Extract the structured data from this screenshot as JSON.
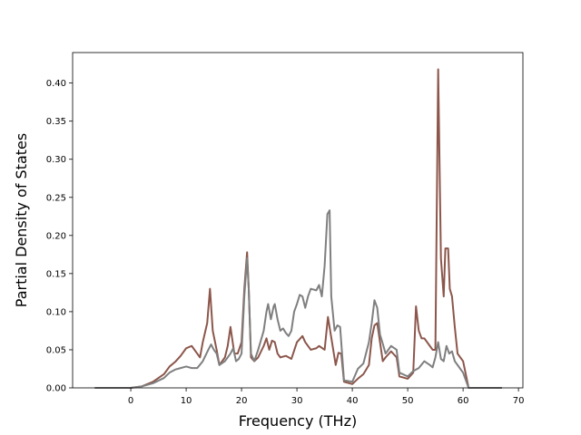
{
  "chart_data": {
    "type": "line",
    "title": "",
    "xlabel": "Frequency (THz)",
    "ylabel": "Partial Density of States",
    "xlim": [
      -10.5,
      70.8
    ],
    "ylim": [
      0.0,
      0.44
    ],
    "x_ticks": [
      "0",
      "10",
      "20",
      "30",
      "40",
      "50",
      "60",
      "70"
    ],
    "y_ticks": [
      "0.00",
      "0.05",
      "0.10",
      "0.15",
      "0.20",
      "0.25",
      "0.30",
      "0.35",
      "0.40"
    ],
    "grid": false,
    "legend": "none",
    "series": [
      {
        "color": "#8c564b",
        "points": [
          [
            -6.5,
            0.0
          ],
          [
            0,
            0.0
          ],
          [
            2,
            0.002
          ],
          [
            4,
            0.008
          ],
          [
            6,
            0.018
          ],
          [
            7,
            0.028
          ],
          [
            8,
            0.034
          ],
          [
            9,
            0.042
          ],
          [
            10,
            0.052
          ],
          [
            11,
            0.055
          ],
          [
            12,
            0.045
          ],
          [
            12.5,
            0.04
          ],
          [
            13,
            0.06
          ],
          [
            13.8,
            0.085
          ],
          [
            14.3,
            0.13
          ],
          [
            14.8,
            0.075
          ],
          [
            15.5,
            0.05
          ],
          [
            16,
            0.03
          ],
          [
            17,
            0.04
          ],
          [
            17.5,
            0.055
          ],
          [
            18,
            0.08
          ],
          [
            18.7,
            0.045
          ],
          [
            19.3,
            0.045
          ],
          [
            20,
            0.06
          ],
          [
            20.5,
            0.13
          ],
          [
            21,
            0.178
          ],
          [
            21.3,
            0.13
          ],
          [
            21.7,
            0.04
          ],
          [
            22.3,
            0.035
          ],
          [
            23,
            0.04
          ],
          [
            24,
            0.055
          ],
          [
            24.5,
            0.065
          ],
          [
            25,
            0.05
          ],
          [
            25.5,
            0.062
          ],
          [
            26,
            0.06
          ],
          [
            26.5,
            0.045
          ],
          [
            27,
            0.04
          ],
          [
            28,
            0.042
          ],
          [
            29,
            0.038
          ],
          [
            30,
            0.06
          ],
          [
            31,
            0.068
          ],
          [
            31.5,
            0.06
          ],
          [
            32.5,
            0.05
          ],
          [
            33.5,
            0.052
          ],
          [
            34,
            0.055
          ],
          [
            35,
            0.05
          ],
          [
            35.6,
            0.093
          ],
          [
            36,
            0.075
          ],
          [
            37,
            0.03
          ],
          [
            37.5,
            0.046
          ],
          [
            38,
            0.045
          ],
          [
            38.5,
            0.008
          ],
          [
            40,
            0.005
          ],
          [
            41,
            0.012
          ],
          [
            42,
            0.018
          ],
          [
            43,
            0.03
          ],
          [
            43.5,
            0.065
          ],
          [
            44,
            0.082
          ],
          [
            44.5,
            0.085
          ],
          [
            45,
            0.06
          ],
          [
            45.5,
            0.035
          ],
          [
            46,
            0.04
          ],
          [
            47,
            0.048
          ],
          [
            48,
            0.04
          ],
          [
            48.5,
            0.015
          ],
          [
            50,
            0.012
          ],
          [
            51,
            0.02
          ],
          [
            51.5,
            0.107
          ],
          [
            52,
            0.075
          ],
          [
            52.5,
            0.065
          ],
          [
            53,
            0.065
          ],
          [
            54,
            0.055
          ],
          [
            54.5,
            0.05
          ],
          [
            55,
            0.05
          ],
          [
            55.5,
            0.418
          ],
          [
            56,
            0.17
          ],
          [
            56.5,
            0.12
          ],
          [
            56.8,
            0.183
          ],
          [
            57.3,
            0.183
          ],
          [
            57.6,
            0.13
          ],
          [
            58,
            0.12
          ],
          [
            58.5,
            0.08
          ],
          [
            59,
            0.045
          ],
          [
            60,
            0.035
          ],
          [
            61,
            0.0
          ],
          [
            62,
            0.0
          ],
          [
            67,
            0.0
          ]
        ]
      },
      {
        "color": "#7f7f7f",
        "points": [
          [
            -6.5,
            0.0
          ],
          [
            0,
            0.0
          ],
          [
            2,
            0.002
          ],
          [
            4,
            0.006
          ],
          [
            6,
            0.013
          ],
          [
            7,
            0.02
          ],
          [
            8,
            0.024
          ],
          [
            9,
            0.026
          ],
          [
            10,
            0.028
          ],
          [
            11,
            0.026
          ],
          [
            12,
            0.026
          ],
          [
            13,
            0.035
          ],
          [
            14,
            0.05
          ],
          [
            14.5,
            0.057
          ],
          [
            15,
            0.05
          ],
          [
            15.5,
            0.045
          ],
          [
            16,
            0.03
          ],
          [
            17,
            0.035
          ],
          [
            18,
            0.045
          ],
          [
            18.5,
            0.052
          ],
          [
            19,
            0.035
          ],
          [
            19.5,
            0.038
          ],
          [
            20,
            0.045
          ],
          [
            20.5,
            0.12
          ],
          [
            21,
            0.17
          ],
          [
            21.3,
            0.13
          ],
          [
            21.7,
            0.045
          ],
          [
            22.3,
            0.035
          ],
          [
            23,
            0.05
          ],
          [
            24,
            0.075
          ],
          [
            24.5,
            0.1
          ],
          [
            24.8,
            0.11
          ],
          [
            25.3,
            0.09
          ],
          [
            25.8,
            0.107
          ],
          [
            26,
            0.11
          ],
          [
            26.5,
            0.09
          ],
          [
            27,
            0.075
          ],
          [
            27.5,
            0.078
          ],
          [
            28,
            0.072
          ],
          [
            28.5,
            0.068
          ],
          [
            29,
            0.075
          ],
          [
            29.5,
            0.1
          ],
          [
            30,
            0.11
          ],
          [
            30.5,
            0.122
          ],
          [
            31,
            0.12
          ],
          [
            31.5,
            0.105
          ],
          [
            32,
            0.12
          ],
          [
            32.5,
            0.13
          ],
          [
            33.5,
            0.128
          ],
          [
            34,
            0.135
          ],
          [
            34.5,
            0.12
          ],
          [
            35,
            0.16
          ],
          [
            35.5,
            0.228
          ],
          [
            35.9,
            0.233
          ],
          [
            36.2,
            0.12
          ],
          [
            36.8,
            0.075
          ],
          [
            37.3,
            0.082
          ],
          [
            37.8,
            0.08
          ],
          [
            38.5,
            0.01
          ],
          [
            40,
            0.008
          ],
          [
            41,
            0.025
          ],
          [
            42,
            0.032
          ],
          [
            43,
            0.06
          ],
          [
            43.5,
            0.085
          ],
          [
            44,
            0.115
          ],
          [
            44.5,
            0.105
          ],
          [
            45,
            0.07
          ],
          [
            45.5,
            0.058
          ],
          [
            46,
            0.045
          ],
          [
            47,
            0.055
          ],
          [
            48,
            0.05
          ],
          [
            48.5,
            0.02
          ],
          [
            50,
            0.015
          ],
          [
            51,
            0.022
          ],
          [
            52,
            0.026
          ],
          [
            53,
            0.035
          ],
          [
            54,
            0.03
          ],
          [
            54.5,
            0.027
          ],
          [
            55,
            0.04
          ],
          [
            55.5,
            0.06
          ],
          [
            56,
            0.038
          ],
          [
            56.5,
            0.035
          ],
          [
            57,
            0.055
          ],
          [
            57.5,
            0.045
          ],
          [
            58,
            0.048
          ],
          [
            58.5,
            0.035
          ],
          [
            59,
            0.03
          ],
          [
            60,
            0.02
          ],
          [
            61,
            0.0
          ],
          [
            62,
            0.0
          ],
          [
            67,
            0.0
          ]
        ]
      }
    ]
  }
}
